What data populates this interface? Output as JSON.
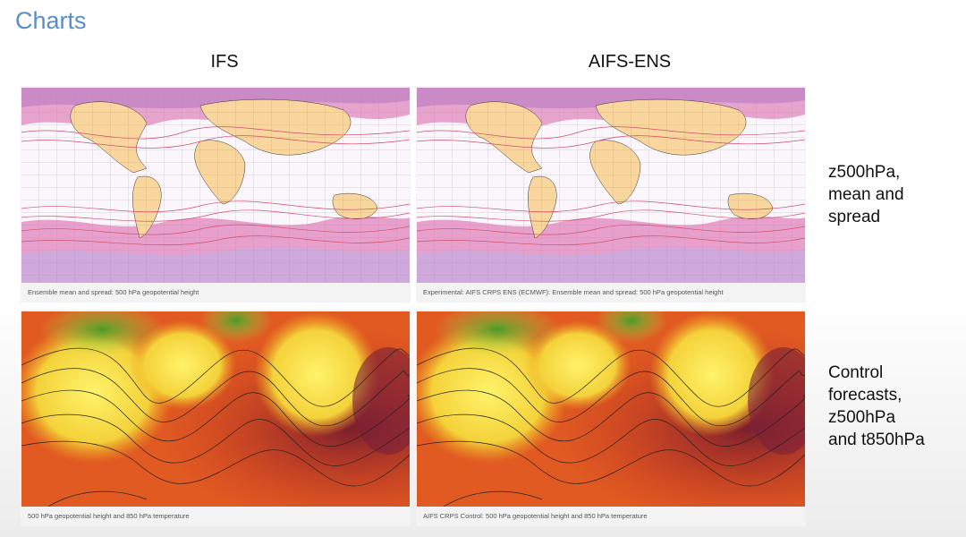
{
  "title": "Charts",
  "columns": [
    "IFS",
    "AIFS-ENS"
  ],
  "rows": [
    {
      "label_lines": [
        "z500hPa,",
        "mean and",
        "spread"
      ],
      "captions": [
        "Ensemble mean and spread: 500 hPa geopotential height",
        "Experimental: AIFS CRPS ENS (ECMWF): Ensemble mean and spread: 500 hPa geopotential height"
      ]
    },
    {
      "label_lines": [
        "Control",
        "forecasts,",
        "z500hPa",
        "and t850hPa"
      ],
      "captions": [
        "500 hPa geopotential height and 850 hPa temperature",
        "AIFS CRPS Control: 500 hPa geopotential height and 850 hPa temperature"
      ]
    }
  ]
}
